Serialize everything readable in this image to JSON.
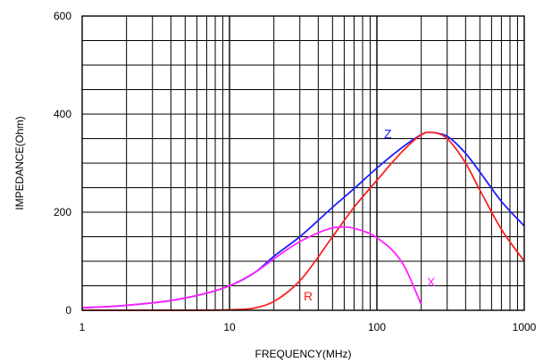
{
  "chart_data": {
    "type": "line",
    "title": "",
    "xlabel": "FREQUENCY(MHz)",
    "ylabel": "IMPEDANCE(Ohm)",
    "x_scale": "log",
    "xlim": [
      1,
      1000
    ],
    "ylim": [
      0,
      600
    ],
    "x_ticks": [
      1,
      10,
      100,
      1000
    ],
    "x_tick_labels": [
      "1",
      "10",
      "100",
      "1000"
    ],
    "y_ticks": [
      0,
      200,
      400,
      600
    ],
    "y_tick_labels": [
      "0",
      "200",
      "400",
      "600"
    ],
    "grid": true,
    "series": [
      {
        "name": "Z",
        "color": "#2020ff",
        "x": [
          1,
          2,
          5,
          10,
          15,
          20,
          30,
          50,
          70,
          100,
          150,
          200,
          220,
          250,
          300,
          400,
          500,
          700,
          1000
        ],
        "y": [
          5,
          10,
          25,
          50,
          78,
          110,
          150,
          210,
          248,
          290,
          333,
          358,
          363,
          362,
          355,
          320,
          282,
          222,
          172
        ]
      },
      {
        "name": "R",
        "color": "#ff2020",
        "x": [
          1,
          5,
          10,
          15,
          20,
          30,
          50,
          70,
          100,
          150,
          200,
          220,
          250,
          300,
          400,
          500,
          700,
          1000
        ],
        "y": [
          0,
          0,
          1,
          5,
          18,
          60,
          150,
          210,
          265,
          325,
          358,
          363,
          362,
          350,
          300,
          245,
          165,
          100
        ]
      },
      {
        "name": "X",
        "color": "#ff20ff",
        "x": [
          1,
          2,
          5,
          10,
          15,
          20,
          30,
          50,
          60,
          70,
          100,
          150,
          200
        ],
        "y": [
          5,
          10,
          25,
          50,
          78,
          105,
          140,
          168,
          170,
          167,
          148,
          95,
          12
        ]
      }
    ]
  }
}
